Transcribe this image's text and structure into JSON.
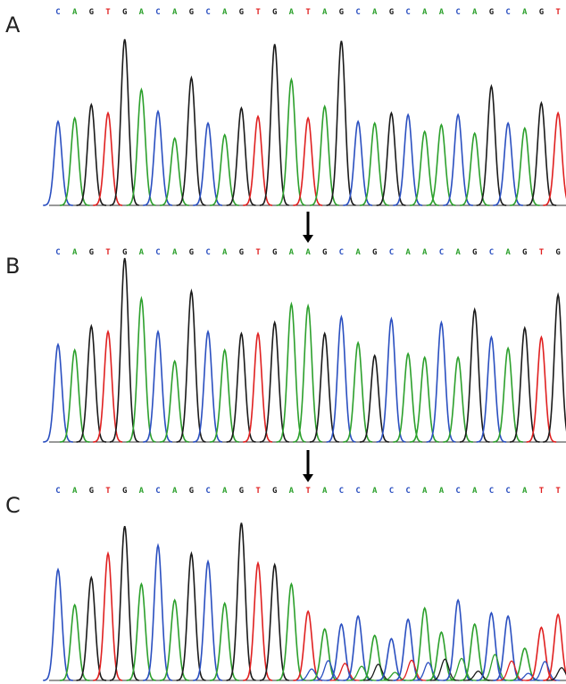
{
  "colors": {
    "A": "#2ca02c",
    "C": "#2a4fc0",
    "G": "#1a1a1a",
    "T": "#e02020",
    "arrow": "#000000",
    "baseline": "#333333"
  },
  "panels": [
    {
      "label": "A",
      "sequence": "CAGTGACAGCAGTGATAGCAGCAACAGCAGT",
      "heights": [
        0.5,
        0.52,
        0.6,
        0.55,
        0.99,
        0.69,
        0.56,
        0.4,
        0.76,
        0.49,
        0.42,
        0.58,
        0.53,
        0.96,
        0.75,
        0.52,
        0.59,
        0.98,
        0.5,
        0.49,
        0.55,
        0.54,
        0.44,
        0.48,
        0.54,
        0.43,
        0.71,
        0.49,
        0.46,
        0.61,
        0.55
      ],
      "mixed": false
    },
    {
      "label": "B",
      "sequence": "CAGTGACAGCAGTGAAGCAGCAACAGCAGTG",
      "heights": [
        0.53,
        0.5,
        0.63,
        0.6,
        1.0,
        0.78,
        0.6,
        0.44,
        0.82,
        0.6,
        0.5,
        0.59,
        0.59,
        0.65,
        0.75,
        0.74,
        0.59,
        0.68,
        0.54,
        0.47,
        0.67,
        0.48,
        0.46,
        0.65,
        0.46,
        0.72,
        0.57,
        0.51,
        0.62,
        0.57,
        0.8
      ],
      "mixed": false
    },
    {
      "label": "C",
      "sequence": "CAGTGACAGCAGTGATACCACCAACACCATT",
      "heights": [
        0.69,
        0.47,
        0.64,
        0.79,
        0.96,
        0.6,
        0.84,
        0.5,
        0.79,
        0.74,
        0.48,
        0.98,
        0.73,
        0.72,
        0.6,
        0.43,
        0.32,
        0.35,
        0.4,
        0.28,
        0.26,
        0.38,
        0.45,
        0.3,
        0.5,
        0.35,
        0.42,
        0.4,
        0.2,
        0.33,
        0.41
      ],
      "mixed": true
    }
  ]
}
